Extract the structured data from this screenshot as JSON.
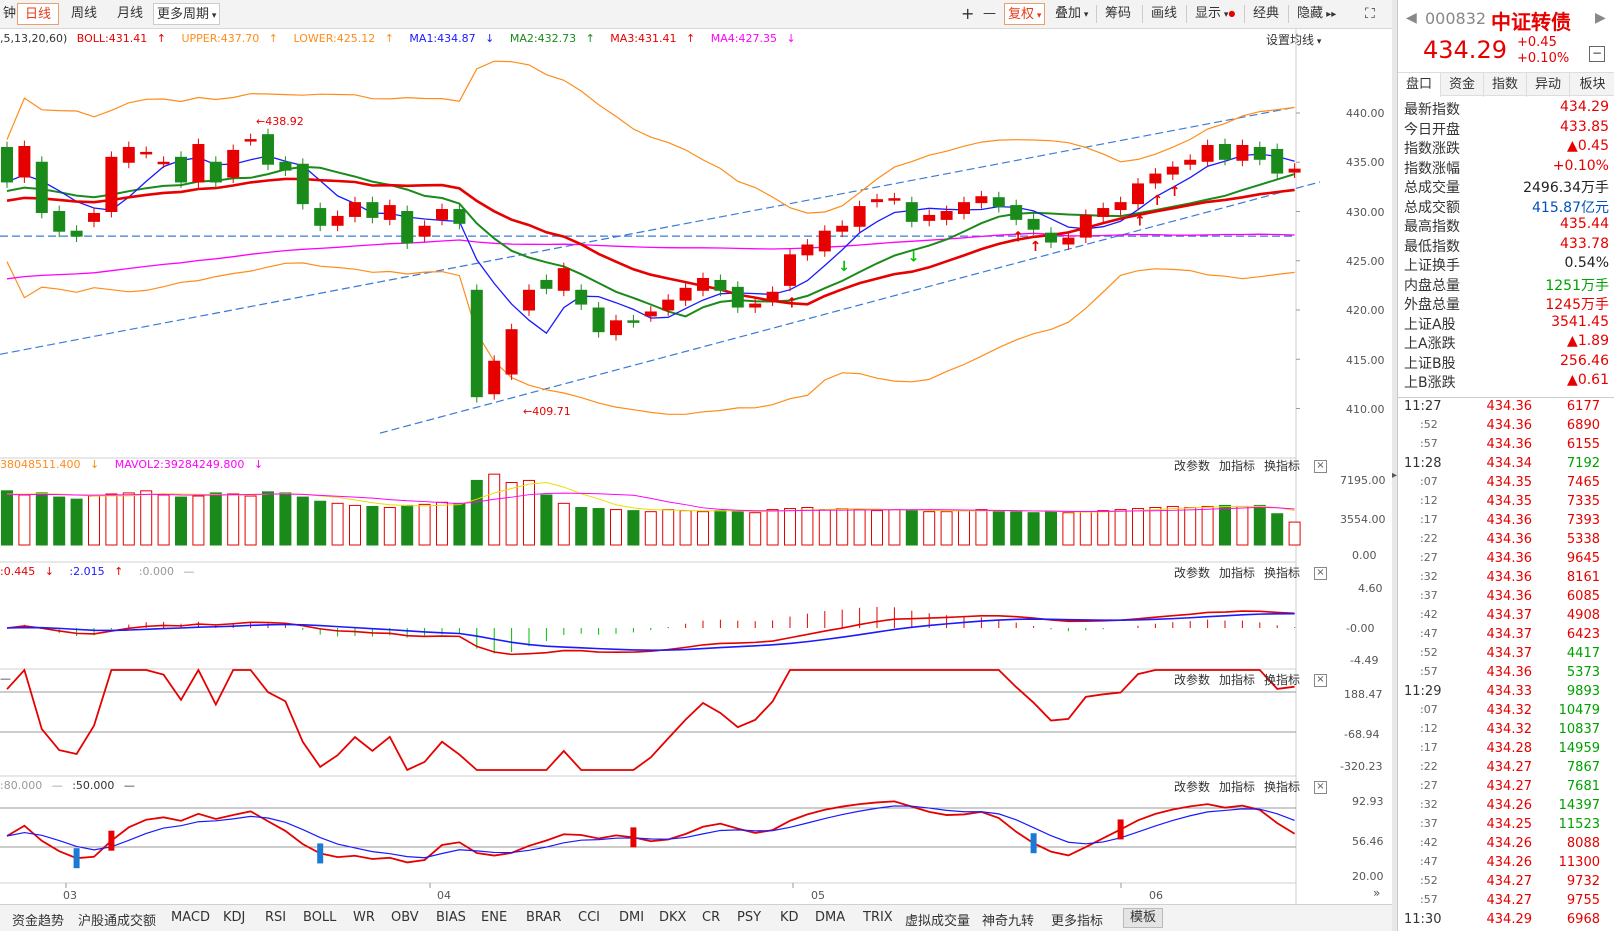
{
  "toolbar": {
    "prefix": "钟",
    "day": "日线",
    "week": "周线",
    "month": "月线",
    "more_period": "更多周期",
    "plus": "+",
    "minus": "—",
    "fuquan": "复权",
    "overlay": "叠加",
    "chips": "筹码",
    "draw": "画线",
    "display": "显示",
    "classic": "经典",
    "hide": "隐藏"
  },
  "main_legend": {
    "params": ",5,13,20,60)",
    "boll": "BOLL:431.41",
    "upper": "UPPER:437.70",
    "lower": "LOWER:425.12",
    "ma1": "MA1:434.87",
    "ma2": "MA2:432.73",
    "ma3": "MA3:431.41",
    "ma4": "MA4:427.35",
    "setting": "设置均线"
  },
  "annotations": {
    "high": "438.92",
    "low": "409.71"
  },
  "price_axis": [
    "440.00",
    "435.00",
    "430.00",
    "425.00",
    "420.00",
    "415.00",
    "410.00"
  ],
  "vol_legend": {
    "mavol1": "38048511.400",
    "mavol2": "MAVOL2:39284249.800"
  },
  "vol_axis": [
    "7195.00",
    "3554.00",
    "0.00"
  ],
  "macd_legend": {
    "a": ":0.445",
    "b": ":2.015",
    "c": ":0.000"
  },
  "macd_axis": [
    "4.60",
    "-0.00",
    "-4.49"
  ],
  "cci_legend": {
    "a": "—"
  },
  "cci_axis": [
    "188.47",
    "-68.94",
    "-320.23"
  ],
  "kdj_legend": {
    "a": ":80.000",
    "b": ":50.000"
  },
  "kdj_axis": [
    "92.93",
    "56.46",
    "20.00"
  ],
  "panel_buttons": {
    "params": "改参数",
    "add": "加指标",
    "swap": "换指标"
  },
  "x_axis": [
    "03",
    "04",
    "05",
    "06"
  ],
  "bottom_tabs": [
    "资金趋势",
    "沪股通成交额",
    "MACD",
    "KDJ",
    "RSI",
    "BOLL",
    "WR",
    "OBV",
    "BIAS",
    "ENE",
    "BRAR",
    "CCI",
    "DMI",
    "DKX",
    "CR",
    "PSY",
    "KD",
    "DMA",
    "TRIX",
    "虚拟成交量",
    "神奇九转",
    "更多指标",
    "模板"
  ],
  "quote": {
    "code": "000832",
    "name": "中证转债",
    "price": "434.29",
    "change": "+0.45",
    "pct": "+0.10%",
    "tabs": [
      "盘口",
      "资金",
      "指数",
      "异动",
      "板块"
    ],
    "rows": [
      {
        "k": "最新指数",
        "v": "434.29",
        "c": "red"
      },
      {
        "k": "今日开盘",
        "v": "433.85",
        "c": "red"
      },
      {
        "k": "指数涨跌",
        "v": "▲0.45",
        "c": "red"
      },
      {
        "k": "指数涨幅",
        "v": "+0.10%",
        "c": "red"
      },
      {
        "k": "总成交量",
        "v": "2496.34万手",
        "c": "black"
      },
      {
        "k": "总成交额",
        "v": "415.87亿元",
        "c": "blue"
      },
      {
        "k": "最高指数",
        "v": "435.44",
        "c": "red"
      },
      {
        "k": "最低指数",
        "v": "433.78",
        "c": "red"
      },
      {
        "k": "上证换手",
        "v": "0.54%",
        "c": "black"
      },
      {
        "k": "内盘总量",
        "v": "1251万手",
        "c": "green"
      },
      {
        "k": "外盘总量",
        "v": "1245万手",
        "c": "red"
      },
      {
        "k": "上证A股",
        "v": "3541.45",
        "c": "red"
      },
      {
        "k": "上A涨跌",
        "v": "▲1.89",
        "c": "red"
      },
      {
        "k": "上证B股",
        "v": "256.46",
        "c": "red"
      },
      {
        "k": "上B涨跌",
        "v": "▲0.61",
        "c": "red"
      }
    ],
    "ticks": [
      {
        "t": "11:27",
        "p": "434.36",
        "v": "6177",
        "pc": "red",
        "vc": "red"
      },
      {
        "t": ":52",
        "p": "434.36",
        "v": "6890",
        "pc": "red",
        "vc": "red"
      },
      {
        "t": ":57",
        "p": "434.36",
        "v": "6155",
        "pc": "red",
        "vc": "red"
      },
      {
        "t": "11:28",
        "p": "434.34",
        "v": "7192",
        "pc": "red",
        "vc": "green"
      },
      {
        "t": ":07",
        "p": "434.35",
        "v": "7465",
        "pc": "red",
        "vc": "red"
      },
      {
        "t": ":12",
        "p": "434.35",
        "v": "7335",
        "pc": "red",
        "vc": "red"
      },
      {
        "t": ":17",
        "p": "434.36",
        "v": "7393",
        "pc": "red",
        "vc": "red"
      },
      {
        "t": ":22",
        "p": "434.36",
        "v": "5338",
        "pc": "red",
        "vc": "red"
      },
      {
        "t": ":27",
        "p": "434.36",
        "v": "9645",
        "pc": "red",
        "vc": "red"
      },
      {
        "t": ":32",
        "p": "434.36",
        "v": "8161",
        "pc": "red",
        "vc": "red"
      },
      {
        "t": ":37",
        "p": "434.36",
        "v": "6085",
        "pc": "red",
        "vc": "red"
      },
      {
        "t": ":42",
        "p": "434.37",
        "v": "4908",
        "pc": "red",
        "vc": "red"
      },
      {
        "t": ":47",
        "p": "434.37",
        "v": "6423",
        "pc": "red",
        "vc": "red"
      },
      {
        "t": ":52",
        "p": "434.37",
        "v": "4417",
        "pc": "red",
        "vc": "green"
      },
      {
        "t": ":57",
        "p": "434.36",
        "v": "5373",
        "pc": "red",
        "vc": "green"
      },
      {
        "t": "11:29",
        "p": "434.33",
        "v": "9893",
        "pc": "red",
        "vc": "green"
      },
      {
        "t": ":07",
        "p": "434.32",
        "v": "10479",
        "pc": "red",
        "vc": "green"
      },
      {
        "t": ":12",
        "p": "434.32",
        "v": "10837",
        "pc": "red",
        "vc": "green"
      },
      {
        "t": ":17",
        "p": "434.28",
        "v": "14959",
        "pc": "red",
        "vc": "green"
      },
      {
        "t": ":22",
        "p": "434.27",
        "v": "7867",
        "pc": "red",
        "vc": "green"
      },
      {
        "t": ":27",
        "p": "434.27",
        "v": "7681",
        "pc": "red",
        "vc": "green"
      },
      {
        "t": ":32",
        "p": "434.26",
        "v": "14397",
        "pc": "red",
        "vc": "green"
      },
      {
        "t": ":37",
        "p": "434.25",
        "v": "11523",
        "pc": "red",
        "vc": "green"
      },
      {
        "t": ":42",
        "p": "434.26",
        "v": "8088",
        "pc": "red",
        "vc": "red"
      },
      {
        "t": ":47",
        "p": "434.26",
        "v": "11300",
        "pc": "red",
        "vc": "red"
      },
      {
        "t": ":52",
        "p": "434.27",
        "v": "9732",
        "pc": "red",
        "vc": "red"
      },
      {
        "t": ":57",
        "p": "434.27",
        "v": "9755",
        "pc": "red",
        "vc": "red"
      },
      {
        "t": "11:30",
        "p": "434.29",
        "v": "6968",
        "pc": "red",
        "vc": "red"
      }
    ]
  },
  "chart_data": {
    "type": "candlestick",
    "title": "中证转债 日线",
    "ylim": [
      408,
      442
    ],
    "candles": [
      {
        "o": 436.5,
        "c": 433.0
      },
      {
        "o": 433.5,
        "c": 436.6
      },
      {
        "o": 435.0,
        "c": 429.9
      },
      {
        "o": 430.0,
        "c": 428.0
      },
      {
        "o": 428.0,
        "c": 427.5
      },
      {
        "o": 429.0,
        "c": 429.8
      },
      {
        "o": 430.0,
        "c": 435.5
      },
      {
        "o": 435.0,
        "c": 436.5
      },
      {
        "o": 436.0,
        "c": 436.0
      },
      {
        "o": 435.0,
        "c": 435.0
      },
      {
        "o": 435.5,
        "c": 433.0
      },
      {
        "o": 433.0,
        "c": 436.8
      },
      {
        "o": 435.0,
        "c": 433.0
      },
      {
        "o": 433.5,
        "c": 436.2
      },
      {
        "o": 437.3,
        "c": 437.3
      },
      {
        "o": 437.8,
        "c": 434.8
      },
      {
        "o": 435.0,
        "c": 434.2
      },
      {
        "o": 434.8,
        "c": 430.8
      },
      {
        "o": 430.3,
        "c": 428.6
      },
      {
        "o": 428.6,
        "c": 429.5
      },
      {
        "o": 429.5,
        "c": 430.9
      },
      {
        "o": 430.9,
        "c": 429.4
      },
      {
        "o": 429.2,
        "c": 430.6
      },
      {
        "o": 430.0,
        "c": 426.8
      },
      {
        "o": 427.5,
        "c": 428.5
      },
      {
        "o": 429.2,
        "c": 430.2
      },
      {
        "o": 430.2,
        "c": 428.8
      },
      {
        "o": 422.0,
        "c": 411.2
      },
      {
        "o": 411.5,
        "c": 414.8
      },
      {
        "o": 413.5,
        "c": 418.0
      },
      {
        "o": 420.0,
        "c": 422.0
      },
      {
        "o": 423.0,
        "c": 422.2
      },
      {
        "o": 422.0,
        "c": 424.2
      },
      {
        "o": 422.0,
        "c": 420.6
      },
      {
        "o": 420.2,
        "c": 417.8
      },
      {
        "o": 417.5,
        "c": 418.9
      },
      {
        "o": 418.9,
        "c": 418.8
      },
      {
        "o": 419.4,
        "c": 419.8
      },
      {
        "o": 420.0,
        "c": 421.0
      },
      {
        "o": 421.0,
        "c": 422.2
      },
      {
        "o": 422.0,
        "c": 423.2
      },
      {
        "o": 423.0,
        "c": 422.0
      },
      {
        "o": 422.3,
        "c": 420.3
      },
      {
        "o": 420.3,
        "c": 420.6
      },
      {
        "o": 421.0,
        "c": 421.8
      },
      {
        "o": 422.5,
        "c": 425.6
      },
      {
        "o": 425.6,
        "c": 426.6
      },
      {
        "o": 426.0,
        "c": 428.0
      },
      {
        "o": 428.0,
        "c": 428.5
      },
      {
        "o": 428.5,
        "c": 430.5
      },
      {
        "o": 431.0,
        "c": 431.2
      },
      {
        "o": 431.3,
        "c": 431.3
      },
      {
        "o": 430.9,
        "c": 429.0
      },
      {
        "o": 429.1,
        "c": 429.6
      },
      {
        "o": 429.2,
        "c": 430.0
      },
      {
        "o": 429.8,
        "c": 430.9
      },
      {
        "o": 430.9,
        "c": 431.5
      },
      {
        "o": 431.4,
        "c": 430.5
      },
      {
        "o": 430.6,
        "c": 429.2
      },
      {
        "o": 429.2,
        "c": 428.2
      },
      {
        "o": 427.8,
        "c": 426.9
      },
      {
        "o": 426.7,
        "c": 427.3
      },
      {
        "o": 427.4,
        "c": 429.6
      },
      {
        "o": 429.5,
        "c": 430.3
      },
      {
        "o": 430.2,
        "c": 430.9
      },
      {
        "o": 430.8,
        "c": 432.8
      },
      {
        "o": 432.9,
        "c": 433.8
      },
      {
        "o": 433.8,
        "c": 434.5
      },
      {
        "o": 434.8,
        "c": 435.2
      },
      {
        "o": 435.1,
        "c": 436.7
      },
      {
        "o": 436.8,
        "c": 435.3
      },
      {
        "o": 435.2,
        "c": 436.7
      },
      {
        "o": 436.5,
        "c": 435.3
      },
      {
        "o": 436.3,
        "c": 433.9
      },
      {
        "o": 434.0,
        "c": 434.3
      }
    ]
  },
  "colors": {
    "up": "#e60000",
    "down": "#1a8a1a",
    "ma1": "#1a1aff",
    "ma2": "#1a8a1a",
    "ma3": "#e60000",
    "ma4": "#ff00ff",
    "boll": "#ff8c1a",
    "trend": "#3a7bd5"
  }
}
